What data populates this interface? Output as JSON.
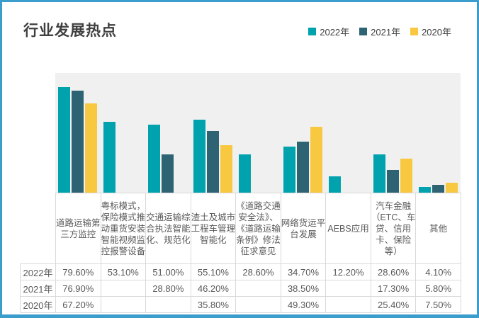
{
  "header": {
    "title": "行业发展热点"
  },
  "legend": [
    {
      "label": "2022年",
      "color": "#00a3ad"
    },
    {
      "label": "2021年",
      "color": "#2d6372"
    },
    {
      "label": "2020年",
      "color": "#f9c841"
    }
  ],
  "chart_data": {
    "type": "bar",
    "title": "行业发展热点",
    "categories": [
      "道路运输第三方监控",
      "粤标模式，保险模式推动重货安装智能视频监控报警设备",
      "交通运输综合执法智能化、规范化",
      "渣土及城市工程车管理智能化",
      "《道路交通安全法》、《道路运输条例》修法征求意见",
      "网络货运平台发展",
      "AEBS应用",
      "汽车金融（ETC、车贷、信用卡、保险等）",
      "其他"
    ],
    "series": [
      {
        "name": "2022年",
        "color": "#00a3ad",
        "values": [
          79.6,
          53.1,
          51.0,
          55.1,
          28.6,
          34.7,
          12.2,
          28.6,
          4.1
        ]
      },
      {
        "name": "2021年",
        "color": "#2d6372",
        "values": [
          76.9,
          null,
          28.8,
          46.2,
          null,
          38.5,
          null,
          17.3,
          5.8
        ]
      },
      {
        "name": "2020年",
        "color": "#f9c841",
        "values": [
          67.2,
          null,
          null,
          35.8,
          null,
          49.3,
          null,
          25.4,
          7.5
        ]
      }
    ],
    "ylim": [
      0,
      90
    ],
    "value_suffix": "%",
    "grid": false,
    "legend_position": "top-right",
    "data_table_shown": true,
    "plot_background": "#f0f0f0"
  }
}
